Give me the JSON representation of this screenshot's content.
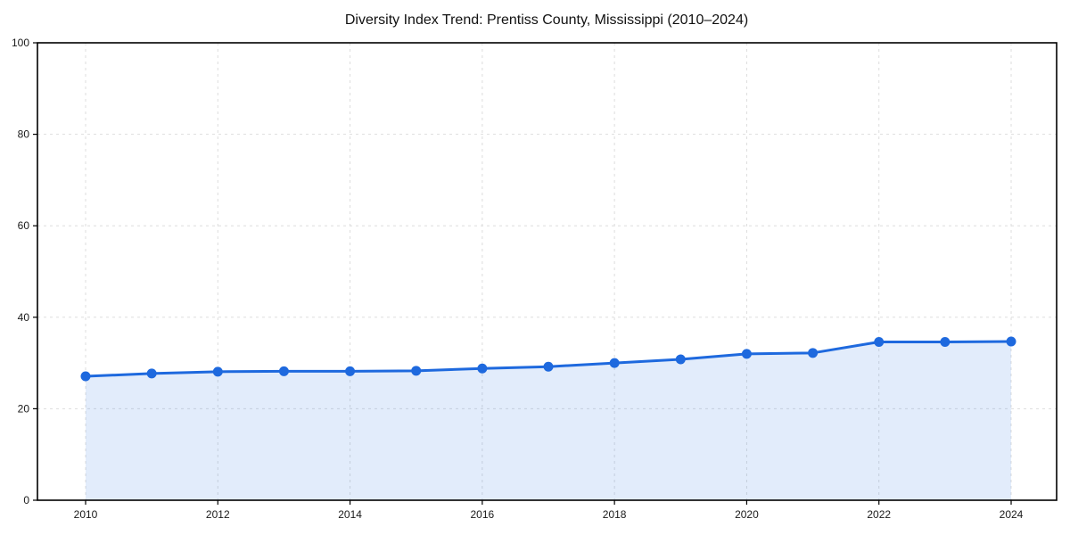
{
  "figure": {
    "background": "#FFFFFF"
  },
  "chart_data": {
    "type": "line",
    "title": "Diversity Index Trend: Prentiss County, Mississippi (2010–2024)",
    "series_name": "Diversity Index",
    "x": [
      2010,
      2011,
      2012,
      2013,
      2014,
      2015,
      2016,
      2017,
      2018,
      2019,
      2020,
      2021,
      2022,
      2023,
      2024
    ],
    "values": [
      27.1,
      27.7,
      28.1,
      28.2,
      28.2,
      28.3,
      28.8,
      29.2,
      30.0,
      30.8,
      32.0,
      32.2,
      34.6,
      34.6,
      34.7
    ],
    "xlabel": "",
    "ylabel": "",
    "xlim": [
      2009.3,
      2024.7
    ],
    "ylim": [
      0,
      100
    ],
    "yticks": [
      0,
      20,
      40,
      60,
      80,
      100
    ],
    "xticks": [
      2010,
      2012,
      2014,
      2016,
      2018,
      2020,
      2022,
      2024
    ],
    "grid": {
      "visible": true,
      "style": "dashed",
      "axes": "both"
    },
    "legend": {
      "visible": false
    },
    "area_fill": true,
    "markers": true,
    "colors": {
      "line": "#1E69DE",
      "marker": "#1E69DE",
      "fill": "rgba(30,105,222,0.13)",
      "grid": "#DDDDDD",
      "spine": "#000000",
      "tick_label": "#1A1A1A",
      "title": "#111111",
      "background": "#FFFFFF"
    }
  }
}
